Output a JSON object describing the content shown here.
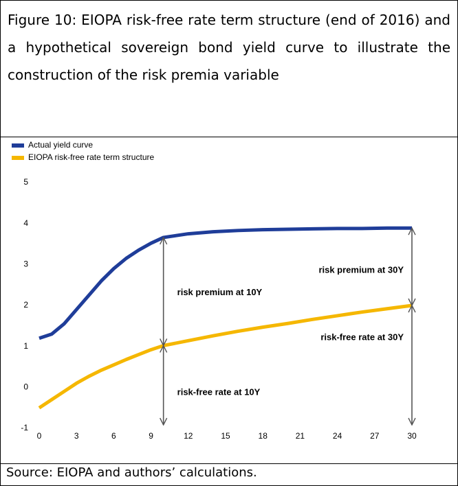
{
  "chart_data": {
    "type": "line",
    "title": "Figure 10: EIOPA risk-free rate term structure (end of 2016) and a hypothetical sovereign bond yield curve to illustrate the construction of the risk premia variable",
    "source": "Source: EIOPA and authors’ calculations.",
    "x": [
      0,
      1,
      2,
      3,
      4,
      5,
      6,
      7,
      8,
      9,
      10,
      12,
      14,
      16,
      18,
      20,
      22,
      24,
      26,
      28,
      30
    ],
    "series": [
      {
        "name": "Actual yield curve",
        "color": "#1f3d99",
        "values": [
          1.2,
          1.3,
          1.55,
          1.9,
          2.25,
          2.6,
          2.9,
          3.15,
          3.35,
          3.52,
          3.66,
          3.75,
          3.8,
          3.83,
          3.85,
          3.86,
          3.87,
          3.88,
          3.88,
          3.89,
          3.89
        ]
      },
      {
        "name": "EIOPA risk-free rate term structure",
        "color": "#f5b700",
        "values": [
          -0.5,
          -0.3,
          -0.1,
          0.1,
          0.27,
          0.42,
          0.55,
          0.68,
          0.8,
          0.92,
          1.02,
          1.14,
          1.26,
          1.37,
          1.47,
          1.56,
          1.66,
          1.75,
          1.84,
          1.92,
          2.0
        ]
      }
    ],
    "annotations": [
      {
        "text": "risk premium at 10Y",
        "x": 10
      },
      {
        "text": "risk-free rate at 10Y",
        "x": 10
      },
      {
        "text": "risk premium at 30Y",
        "x": 30
      },
      {
        "text": "risk-free rate at 30Y",
        "x": 30
      }
    ],
    "xlim": [
      0,
      30
    ],
    "xticks": [
      0,
      3,
      6,
      9,
      12,
      15,
      18,
      21,
      24,
      27,
      30
    ],
    "ylim": [
      -1,
      5
    ],
    "yticks": [
      -1,
      0,
      1,
      2,
      3,
      4,
      5
    ],
    "grid": false
  }
}
